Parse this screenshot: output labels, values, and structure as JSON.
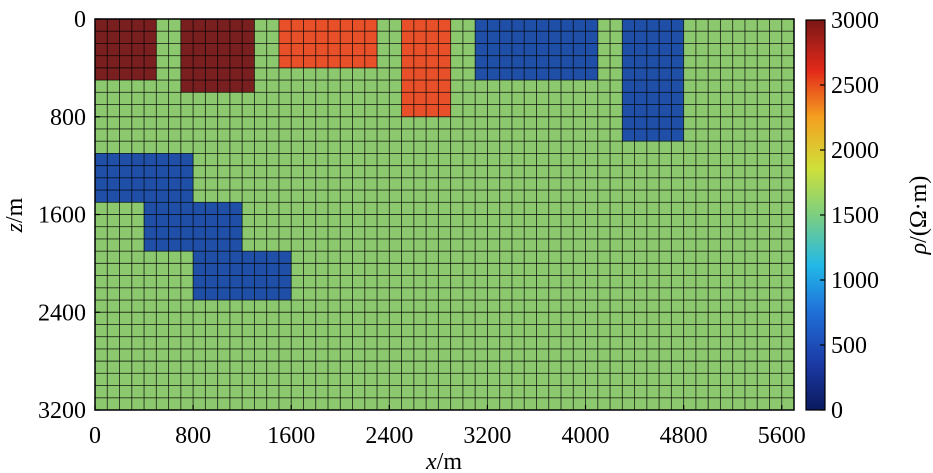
{
  "chart_data": {
    "type": "heatmap",
    "title": "",
    "xlabel_italic": "x",
    "xlabel_unit": "/m",
    "ylabel_italic": "z",
    "ylabel_unit": "/m",
    "xlim": [
      0,
      5700
    ],
    "ylim": [
      0,
      3200
    ],
    "y_inverted": true,
    "cell_size_m": 100,
    "x_ticks": [
      "0",
      "800",
      "1600",
      "2400",
      "3200",
      "4000",
      "4800",
      "5600"
    ],
    "y_ticks": [
      "0",
      "800",
      "1600",
      "2400",
      "3200"
    ],
    "x_tick_values": [
      0,
      800,
      1600,
      2400,
      3200,
      4000,
      4800,
      5600
    ],
    "y_tick_values": [
      0,
      800,
      1600,
      2400,
      3200
    ],
    "grid": true,
    "background_value": 1500,
    "colorbar": {
      "label_italic": "ρ",
      "label_unit": "/(Ω·m)",
      "range": [
        0,
        3000
      ],
      "ticks": [
        "0",
        "500",
        "1000",
        "1500",
        "2000",
        "2500",
        "3000"
      ],
      "tick_values": [
        0,
        500,
        1000,
        1500,
        2000,
        2500,
        3000
      ],
      "colormap": "jet"
    },
    "anomalies": [
      {
        "x0": 0,
        "x1": 500,
        "z0": 0,
        "z1": 500,
        "value": 3000
      },
      {
        "x0": 700,
        "x1": 1300,
        "z0": 0,
        "z1": 600,
        "value": 3000
      },
      {
        "x0": 1500,
        "x1": 2300,
        "z0": 0,
        "z1": 400,
        "value": 2700
      },
      {
        "x0": 2500,
        "x1": 2900,
        "z0": 0,
        "z1": 800,
        "value": 2700
      },
      {
        "x0": 3100,
        "x1": 4100,
        "z0": 0,
        "z1": 500,
        "value": 300
      },
      {
        "x0": 4300,
        "x1": 4800,
        "z0": 0,
        "z1": 1000,
        "value": 300
      },
      {
        "x0": 0,
        "x1": 800,
        "z0": 1100,
        "z1": 1500,
        "value": 300
      },
      {
        "x0": 400,
        "x1": 1200,
        "z0": 1500,
        "z1": 1900,
        "value": 300
      },
      {
        "x0": 800,
        "x1": 1600,
        "z0": 1900,
        "z1": 2300,
        "value": 300
      }
    ]
  },
  "colors": {
    "background_cell": "#8cc86e",
    "high_cell": "#7a1f1f",
    "orange_cell": "#e8502a",
    "blue_cell": "#1f4fa6",
    "grid_line": "#000000"
  }
}
